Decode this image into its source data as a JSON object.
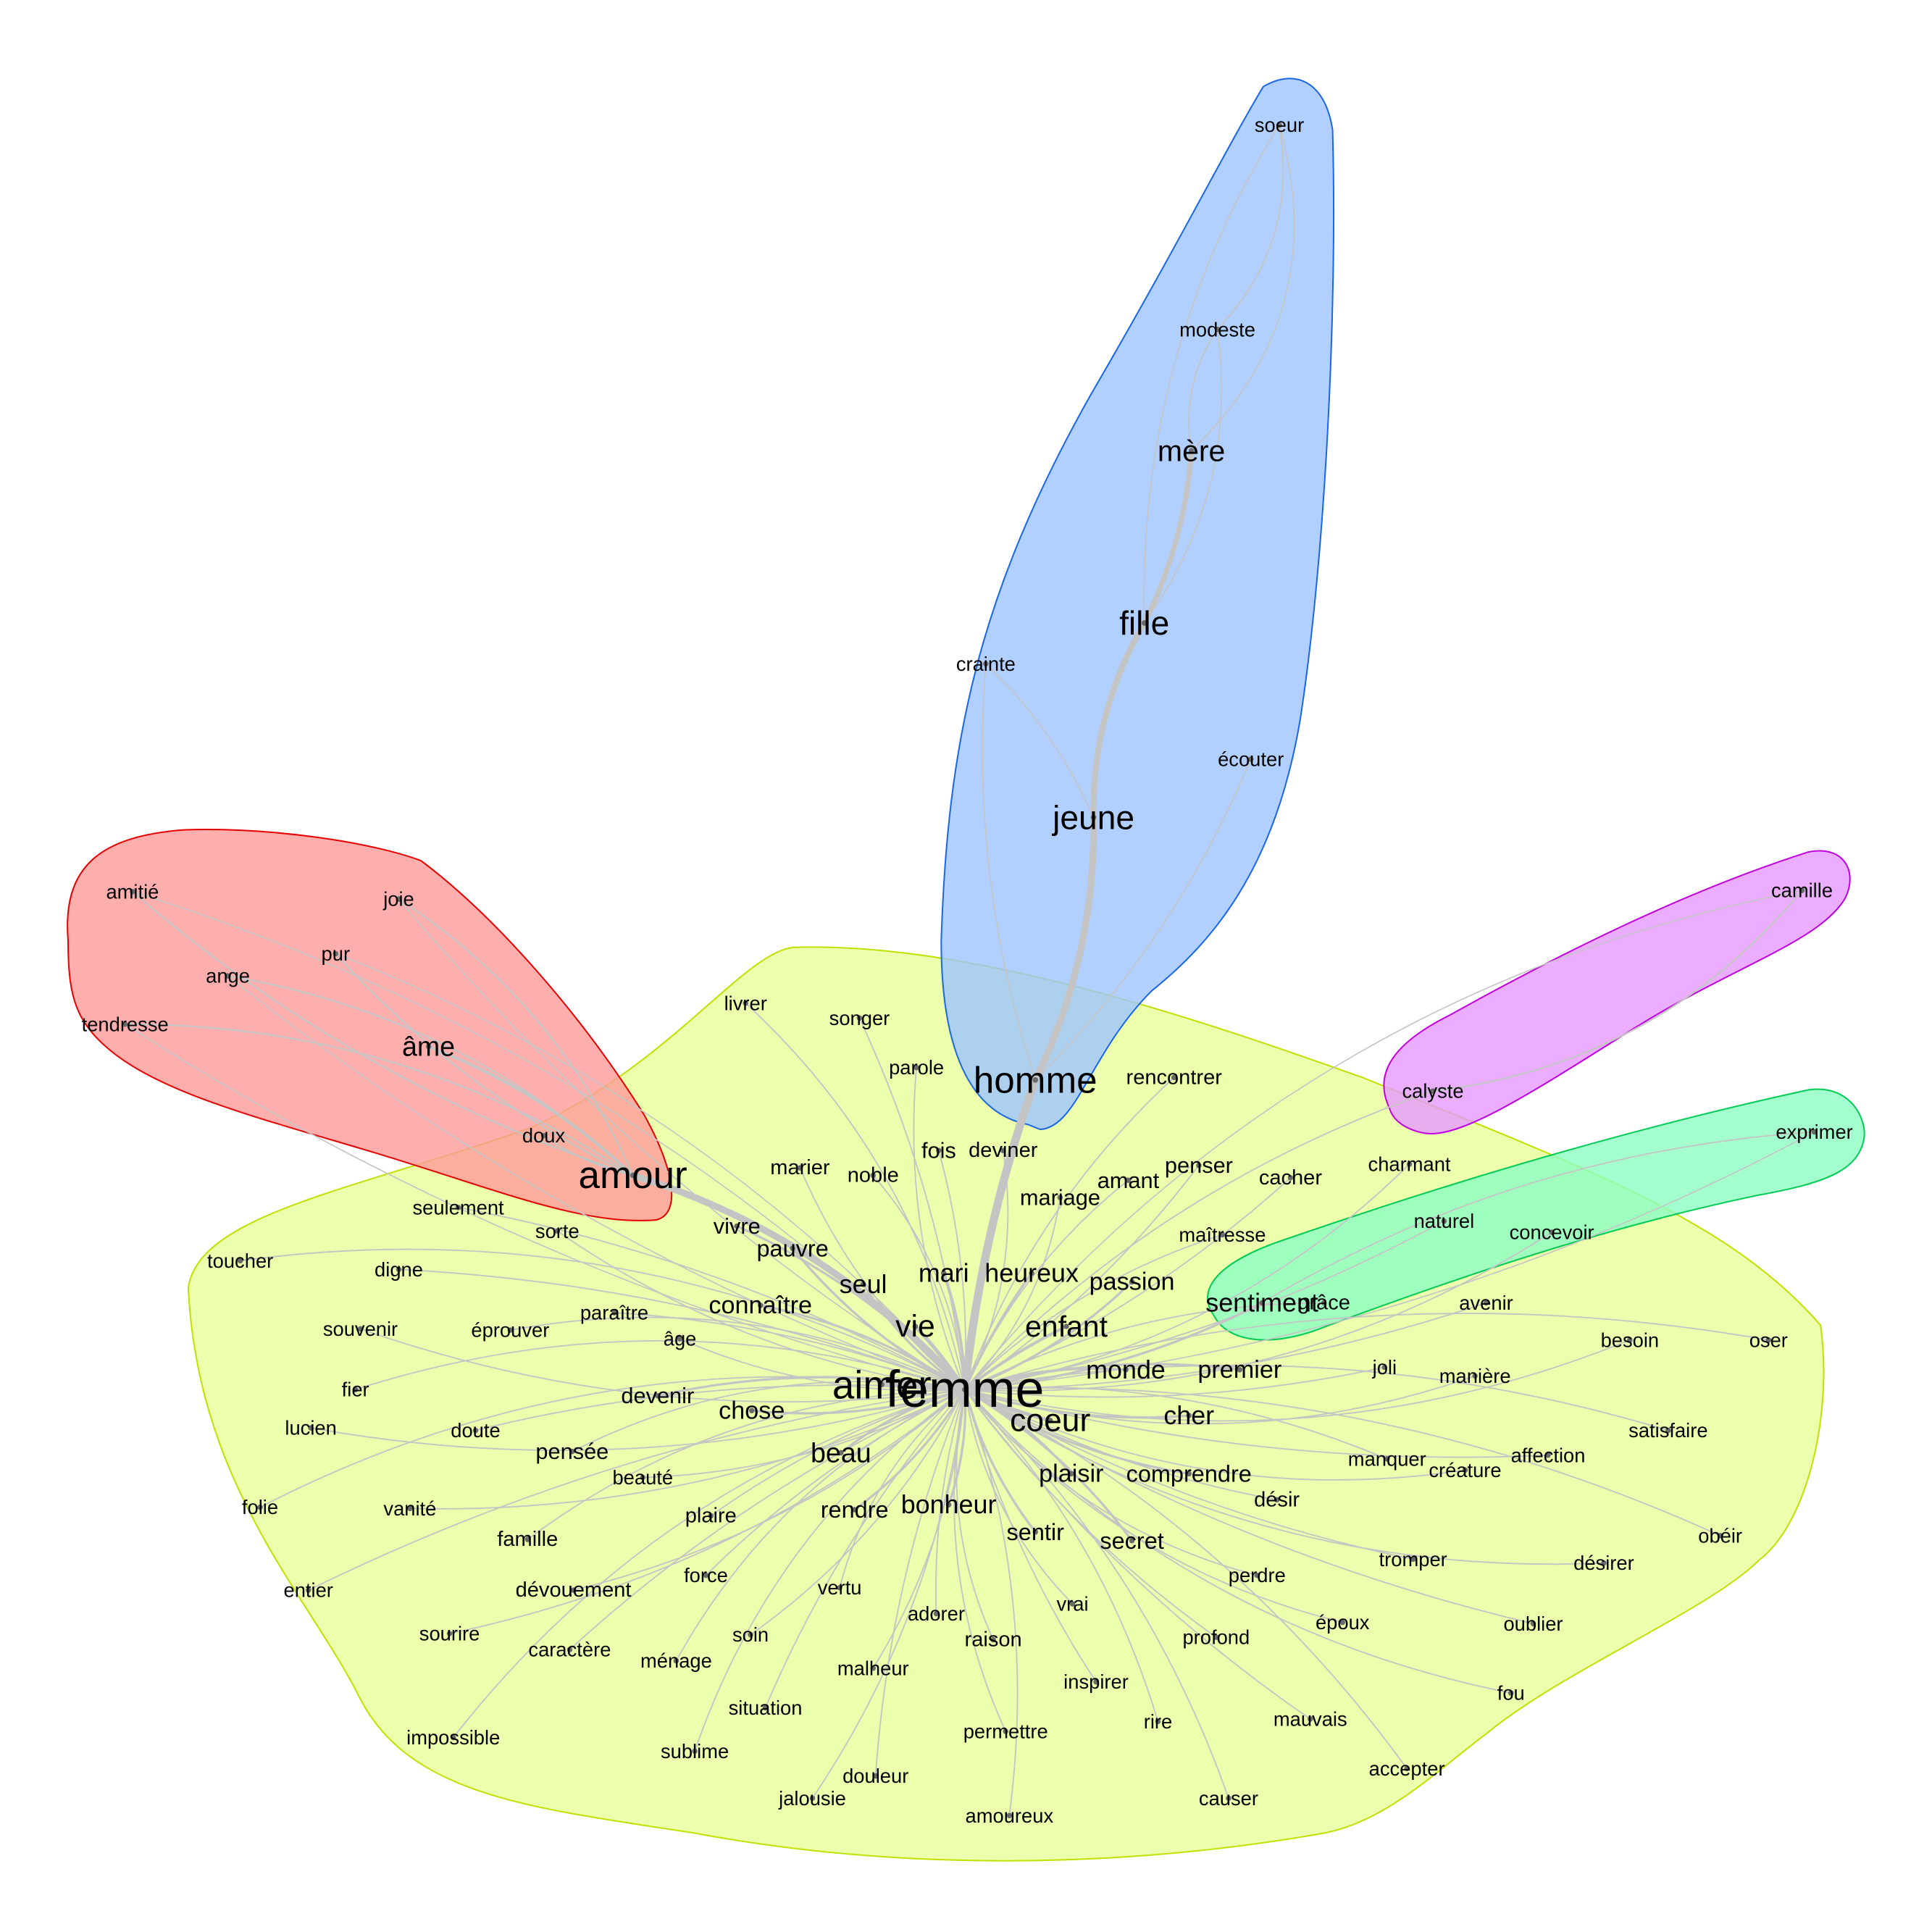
{
  "graph": {
    "center": "femme",
    "clusters": [
      {
        "id": "yellow",
        "fill": "#e6ff99",
        "stroke": "#c2e000",
        "words": [
          "femme",
          "aimer",
          "vie",
          "coeur",
          "enfant",
          "monde",
          "premier",
          "cher",
          "passion",
          "mari",
          "heureux",
          "seul",
          "connaître",
          "pauvre",
          "vivre",
          "marier",
          "noble",
          "fois",
          "deviner",
          "parole",
          "songer",
          "livrer",
          "rencontrer",
          "amant",
          "penser",
          "mariage",
          "cacher",
          "charmant",
          "maîtresse",
          "naturel",
          "concevoir",
          "grâce",
          "avenir",
          "besoin",
          "oser",
          "joli",
          "manière",
          "satisfaire",
          "affection",
          "créature",
          "manquer",
          "comprendre",
          "désir",
          "plaisir",
          "secret",
          "sentir",
          "bonheur",
          "rendre",
          "beau",
          "chose",
          "devenir",
          "âge",
          "paraître",
          "éprouver",
          "souvenir",
          "digne",
          "toucher",
          "sorte",
          "seulement",
          "fier",
          "lucien",
          "doute",
          "pensée",
          "beauté",
          "plaire",
          "folie",
          "vanité",
          "famille",
          "entier",
          "dévouement",
          "force",
          "vertu",
          "sourire",
          "caractère",
          "ménage",
          "soin",
          "adorer",
          "raison",
          "malheur",
          "impossible",
          "situation",
          "sublime",
          "jalousie",
          "douleur",
          "permettre",
          "amoureux",
          "inspirer",
          "vrai",
          "rire",
          "profond",
          "perdre",
          "causer",
          "mauvais",
          "époux",
          "accepter",
          "tromper",
          "désirer",
          "obéir",
          "oublier",
          "fou"
        ]
      },
      {
        "id": "blue",
        "fill": "#9fc4ff",
        "stroke": "#1a66e6",
        "words": [
          "homme",
          "jeune",
          "fille",
          "mère",
          "modeste",
          "soeur",
          "crainte",
          "écouter"
        ]
      },
      {
        "id": "red",
        "fill": "#ff9a9a",
        "stroke": "#e60000",
        "words": [
          "amour",
          "âme",
          "doux",
          "joie",
          "pur",
          "ange",
          "amitié",
          "tendresse"
        ]
      },
      {
        "id": "magenta",
        "fill": "#e699ff",
        "stroke": "#c000e0",
        "words": [
          "calyste",
          "camille"
        ]
      },
      {
        "id": "green",
        "fill": "#8cffc2",
        "stroke": "#00cc55",
        "words": [
          "sentiment",
          "exprimer"
        ]
      }
    ],
    "nodes": [
      "femme",
      "aimer",
      "homme",
      "amour",
      "vie",
      "coeur",
      "enfant",
      "jeune",
      "fille",
      "mère",
      "âme",
      "sentiment",
      "monde",
      "mari",
      "heureux",
      "passion",
      "premier",
      "cher",
      "seul",
      "connaître",
      "bonheur",
      "beau",
      "chose",
      "devenir",
      "pauvre",
      "vivre",
      "plaisir",
      "comprendre",
      "secret",
      "sentir",
      "rendre",
      "mariage",
      "amant",
      "penser",
      "noble",
      "marier",
      "fois",
      "deviner",
      "parole",
      "songer",
      "livrer",
      "rencontrer",
      "cacher",
      "charmant",
      "maîtresse",
      "naturel",
      "concevoir",
      "grâce",
      "avenir",
      "besoin",
      "oser",
      "joli",
      "manière",
      "satisfaire",
      "affection",
      "créature",
      "manquer",
      "désir",
      "pensée",
      "beauté",
      "plaire",
      "famille",
      "dévouement",
      "force",
      "vertu",
      "sourire",
      "caractère",
      "ménage",
      "soin",
      "adorer",
      "raison",
      "malheur",
      "situation",
      "sublime",
      "jalousie",
      "douleur",
      "permettre",
      "amoureux",
      "inspirer",
      "vrai",
      "rire",
      "profond",
      "perdre",
      "causer",
      "mauvais",
      "époux",
      "accepter",
      "tromper",
      "désirer",
      "obéir",
      "oublier",
      "fou",
      "âge",
      "paraître",
      "éprouver",
      "souvenir",
      "digne",
      "toucher",
      "sorte",
      "seulement",
      "fier",
      "lucien",
      "doute",
      "folie",
      "vanité",
      "entier",
      "impossible",
      "doux",
      "joie",
      "pur",
      "ange",
      "amitié",
      "tendresse",
      "modeste",
      "soeur",
      "crainte",
      "écouter",
      "calyste",
      "camille",
      "exprimer"
    ]
  }
}
